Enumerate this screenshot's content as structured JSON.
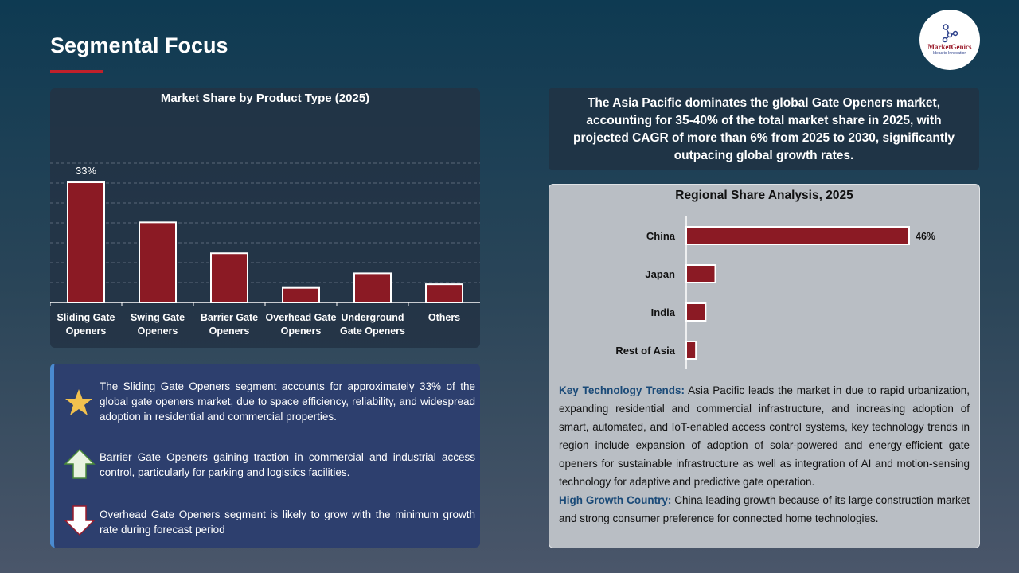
{
  "header": {
    "title": "Segmental Focus",
    "logo": "MarketGenics Ideas to Innovation"
  },
  "chart_data": [
    {
      "type": "bar",
      "title": "Market Share by Product Type (2025)",
      "categories": [
        [
          "Sliding Gate",
          "Openers"
        ],
        [
          "Swing Gate",
          "Openers"
        ],
        [
          "Barrier Gate",
          "Openers"
        ],
        [
          "Overhead Gate",
          "Openers"
        ],
        [
          "Underground",
          "Gate Openers"
        ],
        [
          "Others"
        ]
      ],
      "values": [
        33,
        22,
        13.5,
        4,
        8,
        5
      ],
      "data_labels": [
        "33%",
        "",
        "",
        "",
        "",
        ""
      ],
      "ylim": [
        0,
        40
      ],
      "grid": true,
      "bar_color": "#8b1a24"
    },
    {
      "type": "bar",
      "orientation": "horizontal",
      "title": "Regional Share Analysis, 2025",
      "categories": [
        "China",
        "Japan",
        "India",
        "Rest of Asia"
      ],
      "values": [
        46,
        6,
        4,
        2
      ],
      "data_labels": [
        "46%",
        "",
        "",
        ""
      ],
      "xlim": [
        0,
        46
      ],
      "bar_color": "#8b1a24"
    }
  ],
  "insights": [
    {
      "icon": "star-icon",
      "text": "The Sliding Gate Openers segment accounts for approximately 33% of the global gate openers market, due to space efficiency, reliability, and widespread adoption in residential and commercial properties."
    },
    {
      "icon": "arrow-up-icon",
      "text": "Barrier Gate Openers gaining traction in commercial and industrial access control, particularly for parking and logistics facilities."
    },
    {
      "icon": "arrow-down-icon",
      "text": "Overhead Gate Openers segment is likely to grow with the minimum growth rate during forecast period"
    }
  ],
  "summary": "The Asia Pacific dominates the global Gate Openers market, accounting for 35-40% of the total market share in 2025, with projected CAGR of more than 6% from 2025 to 2030, significantly outpacing global growth rates.",
  "trends": {
    "label": "Key Technology Trends:",
    "text": " Asia Pacific leads the market in due to rapid urbanization, expanding residential and commercial infrastructure, and increasing adoption of smart, automated, and IoT-enabled access control systems, key technology trends in region include expansion of adoption of solar-powered and energy-efficient gate openers for sustainable infrastructure as well as integration of AI and motion-sensing technology for adaptive and predictive gate operation."
  },
  "growth": {
    "label": "High Growth Country:",
    "text": " China leading growth because of its large construction market and strong consumer preference for connected home technologies."
  }
}
